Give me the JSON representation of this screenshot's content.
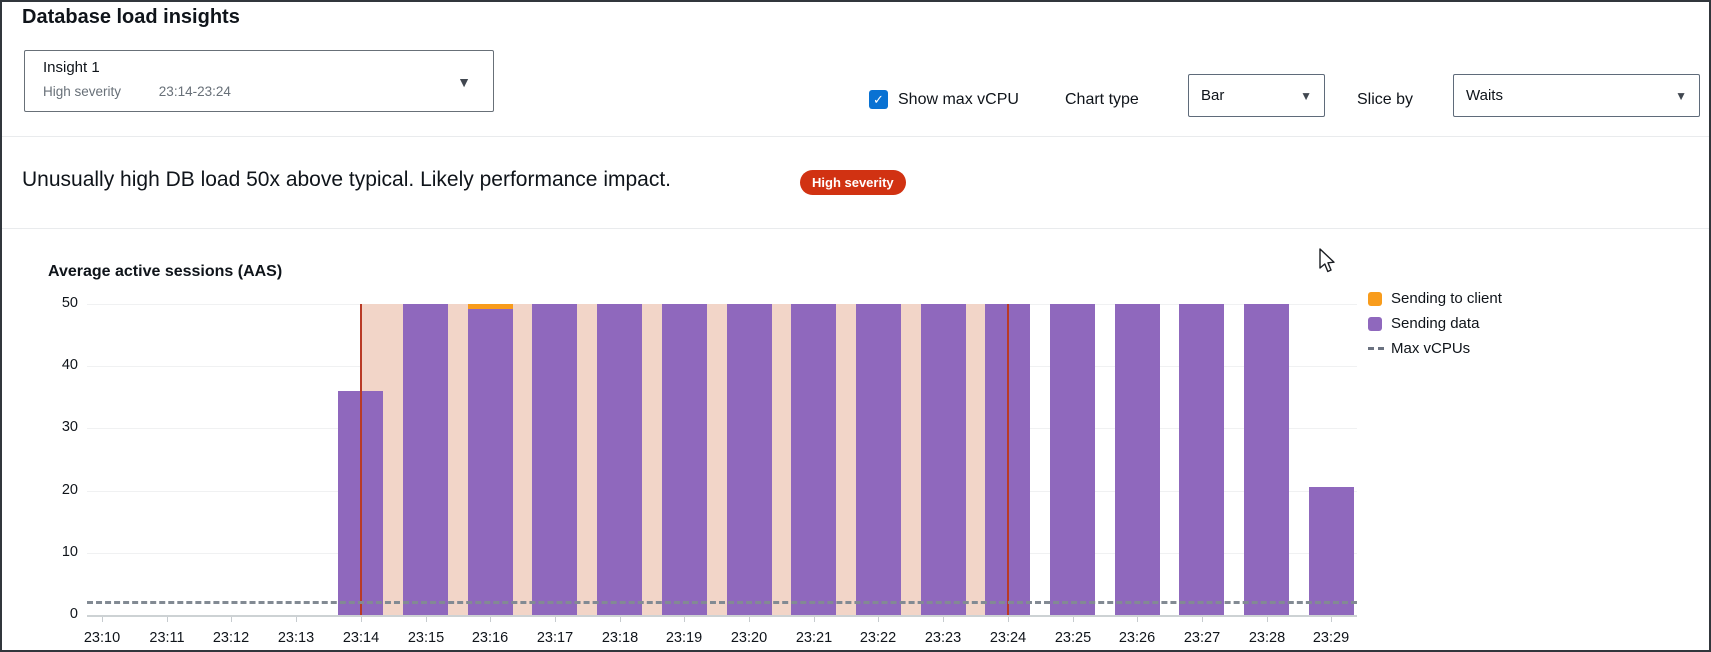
{
  "page_title": "Database load insights",
  "insight_selector": {
    "name": "Insight 1",
    "severity": "High severity",
    "time_range": "23:14-23:24"
  },
  "controls": {
    "show_max_vcpu_label": "Show max vCPU",
    "show_max_vcpu_checked": true,
    "chart_type_label": "Chart type",
    "chart_type_value": "Bar",
    "slice_by_label": "Slice by",
    "slice_by_value": "Waits"
  },
  "banner": {
    "message": "Unusually high DB load 50x above typical. Likely performance impact.",
    "severity_badge": "High severity",
    "badge_color": "#d13212"
  },
  "icons": {
    "checkbox_check": "✓",
    "dropdown_arrow": "▼"
  },
  "chart_data": {
    "type": "bar",
    "stacked": true,
    "title": "Average active sessions (AAS)",
    "xlabel": "",
    "ylabel": "Average active sessions (AAS)",
    "ylim": [
      0,
      50
    ],
    "yticks": [
      0,
      10,
      20,
      30,
      40,
      50
    ],
    "grid": "horizontal",
    "legend_position": "right",
    "categories": [
      "23:10",
      "23:11",
      "23:12",
      "23:13",
      "23:14",
      "23:15",
      "23:16",
      "23:17",
      "23:18",
      "23:19",
      "23:20",
      "23:21",
      "23:22",
      "23:23",
      "23:24",
      "23:25",
      "23:26",
      "23:27",
      "23:28",
      "23:29"
    ],
    "series": [
      {
        "name": "Sending to client",
        "color": "#f89c1c",
        "values": [
          0,
          0,
          0,
          0,
          0,
          0,
          0.8,
          0,
          0,
          0,
          0,
          0,
          0,
          0,
          0,
          0,
          0,
          0,
          0,
          0
        ]
      },
      {
        "name": "Sending data",
        "color": "#8f68bd",
        "values": [
          0,
          0,
          0,
          0,
          36,
          50,
          49.2,
          50,
          50,
          50,
          50,
          50,
          50,
          50,
          50,
          50,
          50,
          50,
          50,
          20.5
        ]
      }
    ],
    "max_vcpus": {
      "label": "Max vCPUs",
      "value": 2,
      "style": "dashed",
      "color": "#828a93"
    },
    "highlight_region": {
      "start": "23:14",
      "end": "23:24",
      "fill": "#f2d5c8",
      "border_color": "#b93a26"
    }
  }
}
